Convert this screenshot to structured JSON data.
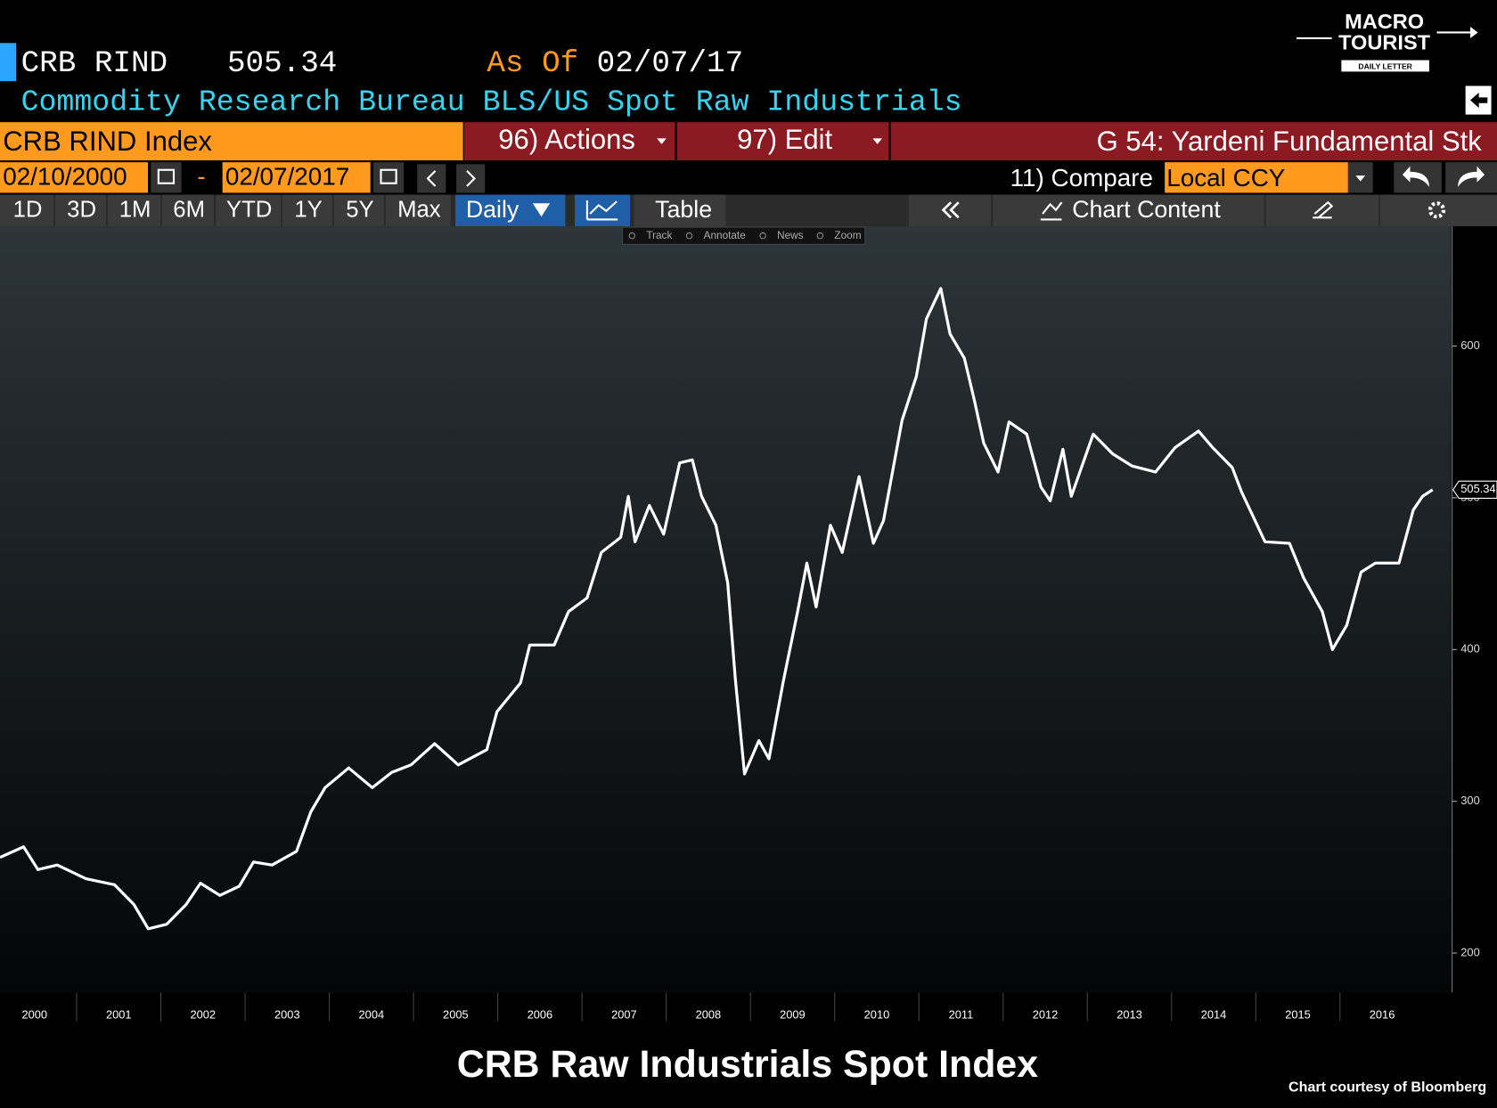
{
  "header": {
    "ticker": "CRB RIND",
    "as_of_label": "As Of",
    "as_of_date": "02/07/17",
    "description": "Commodity Research Bureau BLS/US Spot Raw Industrials"
  },
  "logo": {
    "line1": "MACRO",
    "line2": "TOURIST",
    "tagline": "DAILY LETTER"
  },
  "toolbar": {
    "security": "CRB RIND Index",
    "actions": "96) Actions",
    "edit": "97) Edit",
    "chart_name": "G 54: Yardeni Fundamental Stk",
    "start_date": "02/10/2000",
    "date_separator": "-",
    "end_date": "02/07/2017",
    "compare": "11) Compare",
    "currency": "Local CCY",
    "periods": [
      "1D",
      "3D",
      "1M",
      "6M",
      "YTD",
      "1Y",
      "5Y",
      "Max"
    ],
    "frequency": "Daily",
    "table": "Table",
    "chart_content": "Chart Content",
    "tools": [
      "Track",
      "Annotate",
      "News",
      "Zoom"
    ]
  },
  "chart_data": {
    "type": "line",
    "title": "CRB Raw Industrials Spot Index",
    "source": "Chart courtesy of Bloomberg",
    "color": "#ffffff",
    "x": [
      2000.09,
      2000.37,
      2000.54,
      2000.77,
      2001.11,
      2001.45,
      2001.68,
      2001.85,
      2002.07,
      2002.3,
      2002.47,
      2002.7,
      2002.93,
      2003.1,
      2003.32,
      2003.61,
      2003.78,
      2003.95,
      2004.23,
      2004.51,
      2004.74,
      2004.97,
      2005.25,
      2005.53,
      2005.87,
      2005.99,
      2006.27,
      2006.38,
      2006.67,
      2006.84,
      2007.06,
      2007.23,
      2007.46,
      2007.55,
      2007.63,
      2007.8,
      2007.97,
      2008.16,
      2008.31,
      2008.42,
      2008.59,
      2008.73,
      2008.82,
      2008.93,
      2009.1,
      2009.22,
      2009.39,
      2009.56,
      2009.67,
      2009.78,
      2009.95,
      2010.09,
      2010.29,
      2010.46,
      2010.58,
      2010.8,
      2010.97,
      2011.09,
      2011.26,
      2011.37,
      2011.54,
      2011.66,
      2011.77,
      2011.94,
      2012.07,
      2012.28,
      2012.45,
      2012.56,
      2012.71,
      2012.81,
      2013.07,
      2013.3,
      2013.53,
      2013.81,
      2014.04,
      2014.32,
      2014.49,
      2014.72,
      2014.83,
      2015.11,
      2015.4,
      2015.57,
      2015.79,
      2015.91,
      2016.08,
      2016.25,
      2016.42,
      2016.7,
      2016.87,
      2016.98,
      2017.1
    ],
    "values": [
      263,
      270,
      255,
      258,
      249,
      245,
      232,
      216,
      219,
      232,
      246,
      238,
      244,
      260,
      258,
      267,
      293,
      309,
      322,
      309,
      319,
      324,
      338,
      324,
      334,
      359,
      378,
      403,
      403,
      425,
      434,
      464,
      474,
      501,
      471,
      495,
      476,
      523,
      525,
      501,
      482,
      444,
      381,
      318,
      340,
      328,
      379,
      425,
      457,
      428,
      482,
      464,
      514,
      470,
      485,
      551,
      580,
      618,
      638,
      608,
      592,
      564,
      536,
      517,
      550,
      542,
      507,
      498,
      532,
      501,
      542,
      529,
      521,
      517,
      533,
      544,
      533,
      520,
      504,
      471,
      470,
      447,
      425,
      400,
      416,
      451,
      457,
      457,
      492,
      501,
      505.34
    ],
    "xlim": [
      2000.09,
      2017.32
    ],
    "ylim": [
      174,
      679
    ],
    "xticks": [
      2000,
      2001,
      2002,
      2003,
      2004,
      2005,
      2006,
      2007,
      2008,
      2009,
      2010,
      2011,
      2012,
      2013,
      2014,
      2015,
      2016
    ],
    "yticks": [
      200,
      300,
      400,
      500,
      600
    ]
  }
}
